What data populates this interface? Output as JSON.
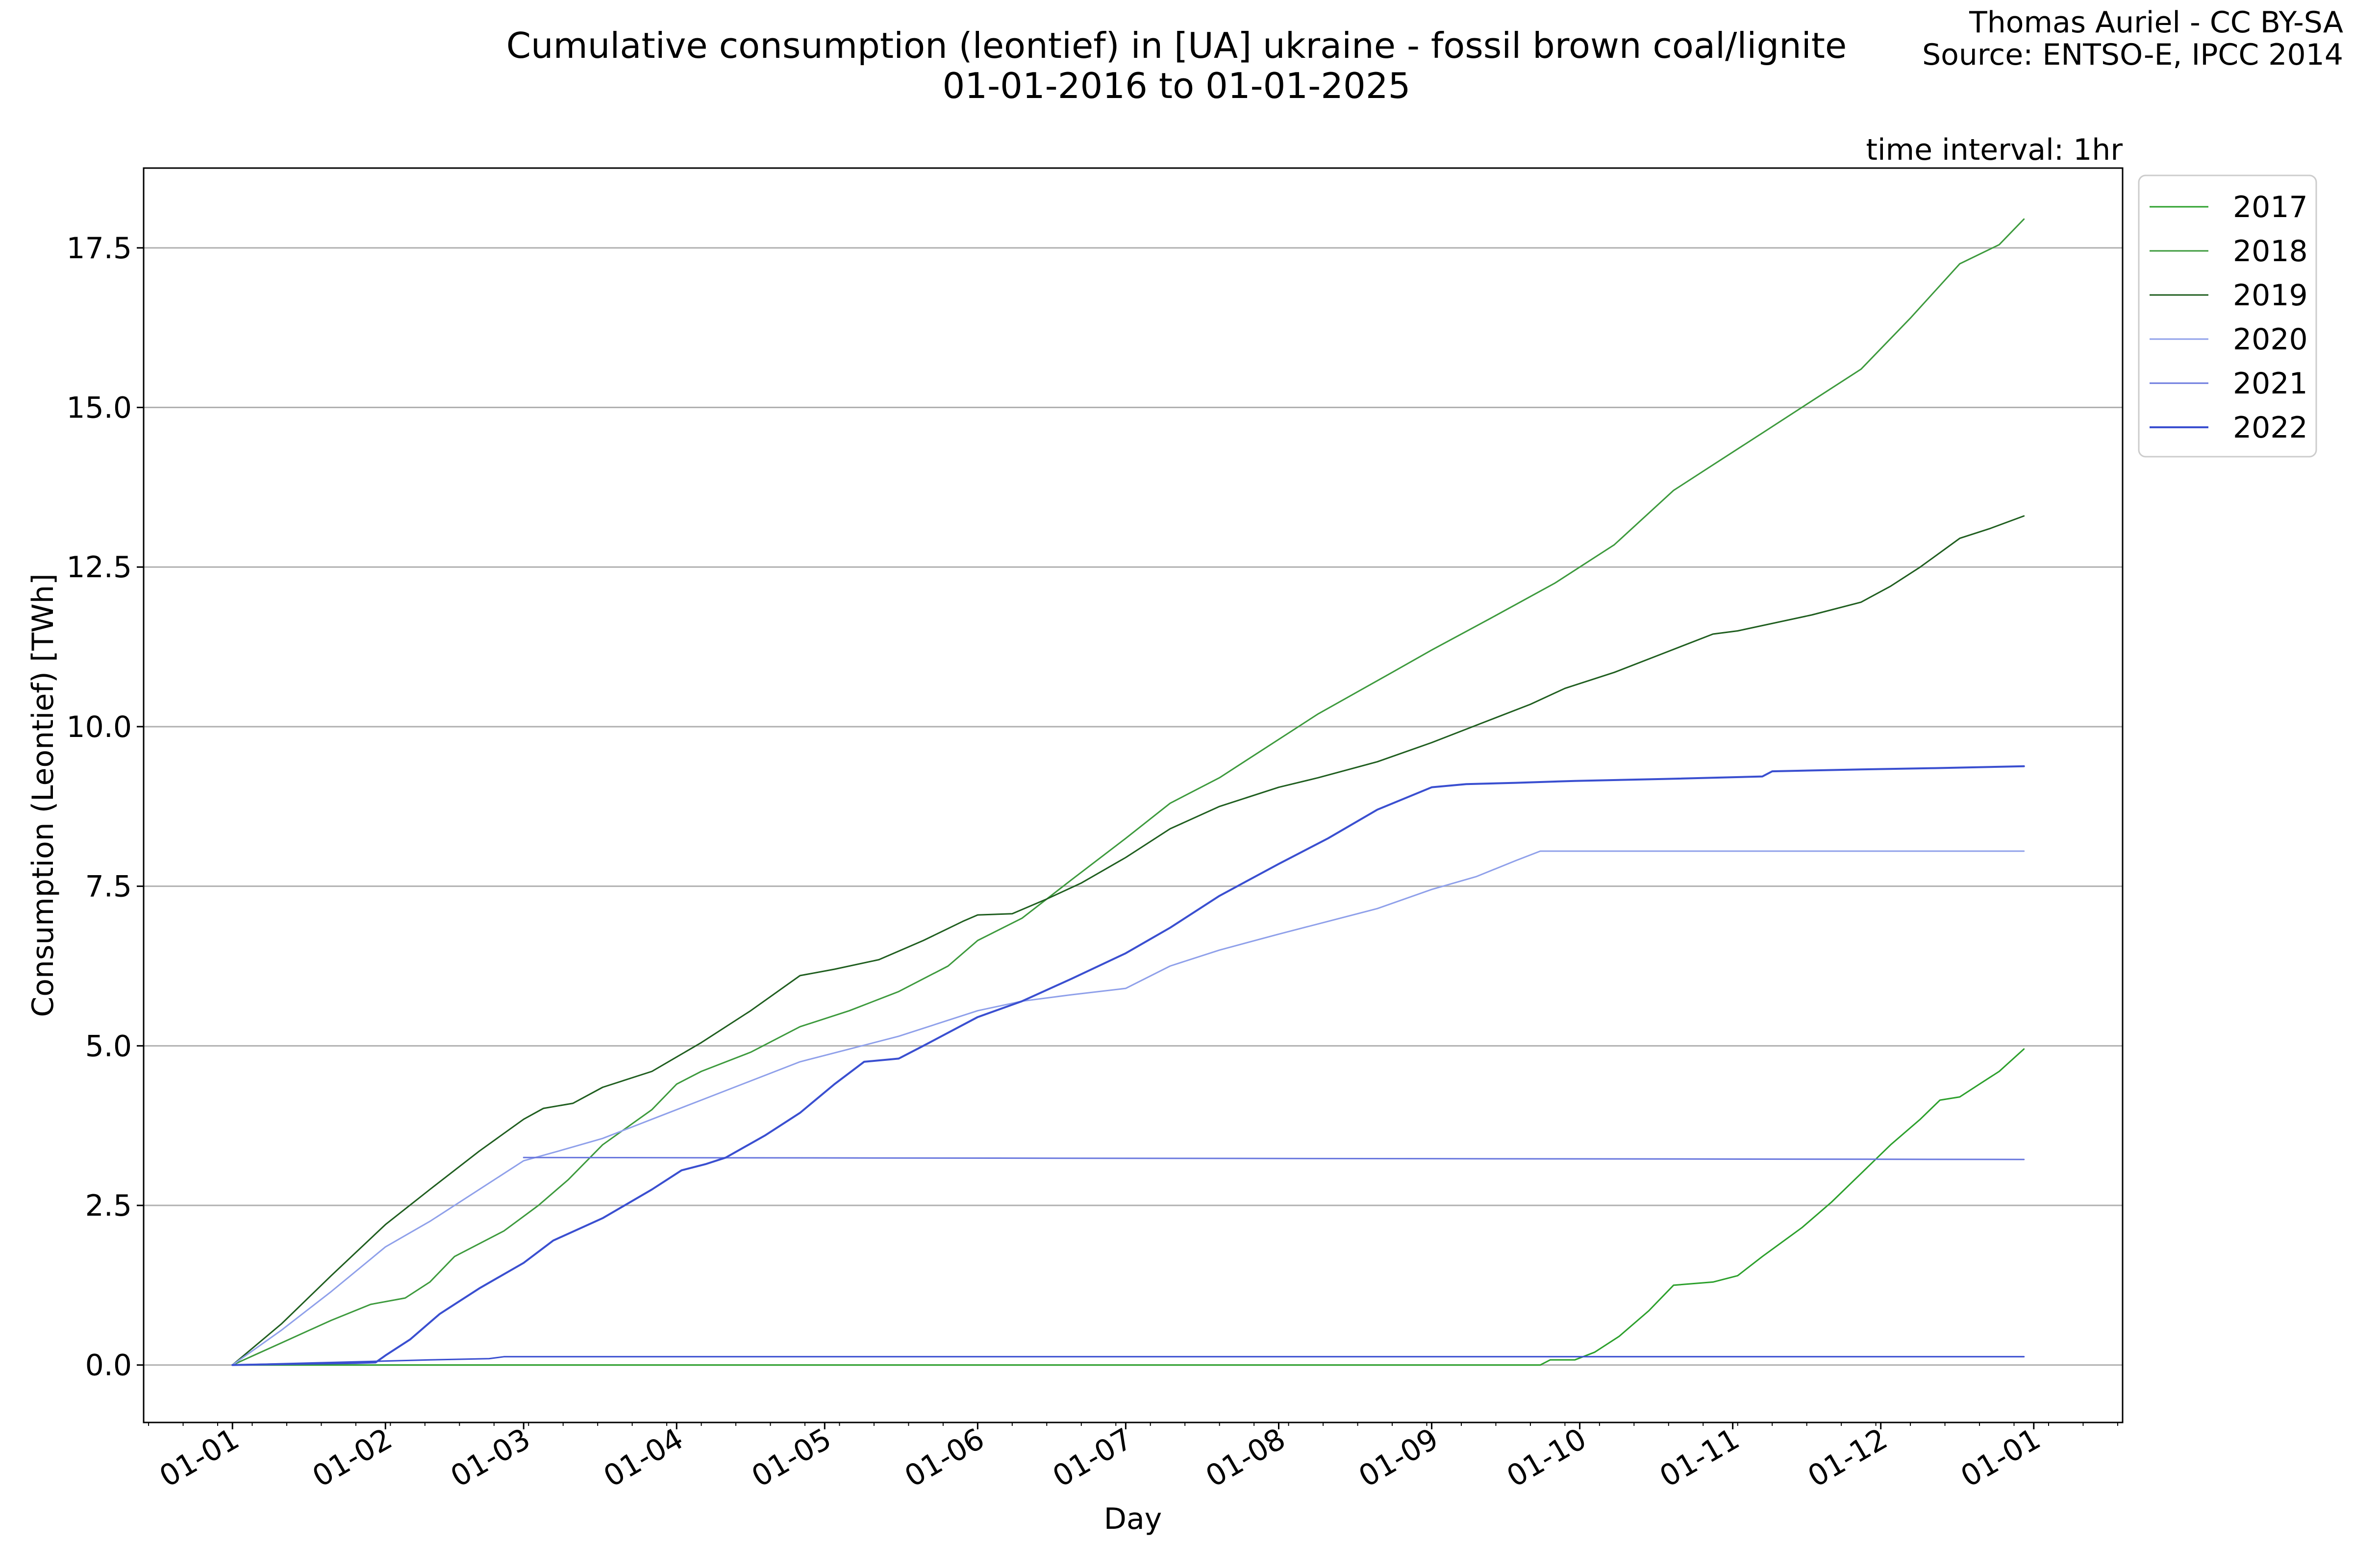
{
  "title_line1": "Cumulative consumption (leontief) in [UA] ukraine - fossil brown coal/lignite",
  "title_line2": "01-01-2016 to 01-01-2025",
  "credit_line1": "Thomas Auriel - CC BY-SA",
  "credit_line2": "Source: ENTSO-E, IPCC 2014",
  "interval_text": "time interval: 1hr",
  "chart_data": {
    "type": "line",
    "xlabel": "Day",
    "ylabel": "Consumption (Leontief) [TWh]",
    "x_tick_labels": [
      "01-01",
      "01-02",
      "01-03",
      "01-04",
      "01-05",
      "01-06",
      "01-07",
      "01-08",
      "01-09",
      "01-10",
      "01-11",
      "01-12",
      "01-01"
    ],
    "x_tick_days": [
      0,
      31,
      59,
      90,
      120,
      151,
      181,
      212,
      243,
      273,
      304,
      334,
      365
    ],
    "y_ticks": [
      0.0,
      2.5,
      5.0,
      7.5,
      10.0,
      12.5,
      15.0,
      17.5
    ],
    "y_tick_labels": [
      "0.0",
      "2.5",
      "5.0",
      "7.5",
      "10.0",
      "12.5",
      "15.0",
      "17.5"
    ],
    "xlim": [
      -18,
      383
    ],
    "ylim": [
      -0.9,
      18.75
    ],
    "grid": "horizontal",
    "legend_position": "upper-right-outside",
    "series": [
      {
        "name": "2017",
        "color": "#2ca02c",
        "width": 3,
        "points": [
          [
            0,
            0
          ],
          [
            15,
            0
          ],
          [
            59,
            0
          ],
          [
            90,
            0
          ],
          [
            120,
            0
          ],
          [
            151,
            0
          ],
          [
            181,
            0
          ],
          [
            212,
            0
          ],
          [
            243,
            0
          ],
          [
            265,
            0
          ],
          [
            267,
            0.08
          ],
          [
            272,
            0.08
          ],
          [
            276,
            0.2
          ],
          [
            281,
            0.45
          ],
          [
            287,
            0.85
          ],
          [
            292,
            1.25
          ],
          [
            300,
            1.3
          ],
          [
            305,
            1.4
          ],
          [
            310,
            1.7
          ],
          [
            318,
            2.15
          ],
          [
            324,
            2.55
          ],
          [
            330,
            3.0
          ],
          [
            336,
            3.45
          ],
          [
            342,
            3.85
          ],
          [
            346,
            4.15
          ],
          [
            350,
            4.2
          ],
          [
            354,
            4.4
          ],
          [
            358,
            4.6
          ],
          [
            363,
            4.95
          ]
        ]
      },
      {
        "name": "2018",
        "color": "#3d9a3d",
        "width": 3,
        "points": [
          [
            0,
            0
          ],
          [
            10,
            0.35
          ],
          [
            20,
            0.7
          ],
          [
            28,
            0.95
          ],
          [
            35,
            1.05
          ],
          [
            40,
            1.3
          ],
          [
            45,
            1.7
          ],
          [
            55,
            2.1
          ],
          [
            62,
            2.5
          ],
          [
            68,
            2.9
          ],
          [
            75,
            3.45
          ],
          [
            85,
            4.0
          ],
          [
            90,
            4.4
          ],
          [
            95,
            4.6
          ],
          [
            105,
            4.9
          ],
          [
            115,
            5.3
          ],
          [
            125,
            5.55
          ],
          [
            135,
            5.85
          ],
          [
            145,
            6.25
          ],
          [
            151,
            6.65
          ],
          [
            160,
            7.0
          ],
          [
            170,
            7.6
          ],
          [
            181,
            8.25
          ],
          [
            190,
            8.8
          ],
          [
            200,
            9.2
          ],
          [
            212,
            9.8
          ],
          [
            220,
            10.2
          ],
          [
            235,
            10.85
          ],
          [
            243,
            11.2
          ],
          [
            255,
            11.7
          ],
          [
            268,
            12.25
          ],
          [
            280,
            12.85
          ],
          [
            292,
            13.7
          ],
          [
            300,
            14.1
          ],
          [
            310,
            14.6
          ],
          [
            318,
            15.0
          ],
          [
            330,
            15.6
          ],
          [
            340,
            16.4
          ],
          [
            350,
            17.25
          ],
          [
            358,
            17.55
          ],
          [
            363,
            17.95
          ]
        ]
      },
      {
        "name": "2019",
        "color": "#1f5e1f",
        "width": 3,
        "points": [
          [
            0,
            0
          ],
          [
            10,
            0.65
          ],
          [
            20,
            1.4
          ],
          [
            31,
            2.2
          ],
          [
            40,
            2.75
          ],
          [
            50,
            3.35
          ],
          [
            59,
            3.85
          ],
          [
            63,
            4.02
          ],
          [
            69,
            4.1
          ],
          [
            75,
            4.35
          ],
          [
            85,
            4.6
          ],
          [
            95,
            5.05
          ],
          [
            105,
            5.55
          ],
          [
            115,
            6.1
          ],
          [
            122,
            6.2
          ],
          [
            131,
            6.35
          ],
          [
            140,
            6.65
          ],
          [
            148,
            6.95
          ],
          [
            151,
            7.05
          ],
          [
            158,
            7.07
          ],
          [
            165,
            7.3
          ],
          [
            172,
            7.55
          ],
          [
            181,
            7.95
          ],
          [
            190,
            8.4
          ],
          [
            200,
            8.75
          ],
          [
            212,
            9.05
          ],
          [
            220,
            9.2
          ],
          [
            232,
            9.45
          ],
          [
            243,
            9.75
          ],
          [
            253,
            10.05
          ],
          [
            263,
            10.35
          ],
          [
            270,
            10.6
          ],
          [
            280,
            10.85
          ],
          [
            290,
            11.15
          ],
          [
            300,
            11.45
          ],
          [
            305,
            11.5
          ],
          [
            320,
            11.75
          ],
          [
            330,
            11.95
          ],
          [
            336,
            12.2
          ],
          [
            342,
            12.5
          ],
          [
            350,
            12.95
          ],
          [
            356,
            13.1
          ],
          [
            363,
            13.3
          ]
        ]
      },
      {
        "name": "2020",
        "color": "#8fa0ea",
        "width": 3,
        "points": [
          [
            0,
            0
          ],
          [
            10,
            0.55
          ],
          [
            20,
            1.15
          ],
          [
            31,
            1.85
          ],
          [
            40,
            2.25
          ],
          [
            50,
            2.75
          ],
          [
            59,
            3.2
          ],
          [
            66,
            3.35
          ],
          [
            75,
            3.55
          ],
          [
            85,
            3.85
          ],
          [
            95,
            4.15
          ],
          [
            105,
            4.45
          ],
          [
            115,
            4.75
          ],
          [
            125,
            4.95
          ],
          [
            135,
            5.15
          ],
          [
            145,
            5.4
          ],
          [
            151,
            5.55
          ],
          [
            160,
            5.7
          ],
          [
            170,
            5.8
          ],
          [
            181,
            5.9
          ],
          [
            190,
            6.25
          ],
          [
            200,
            6.5
          ],
          [
            212,
            6.75
          ],
          [
            222,
            6.95
          ],
          [
            232,
            7.15
          ],
          [
            243,
            7.45
          ],
          [
            252,
            7.65
          ],
          [
            260,
            7.9
          ],
          [
            265,
            8.05
          ],
          [
            300,
            8.05
          ],
          [
            363,
            8.05
          ]
        ]
      },
      {
        "name": "2021",
        "color": "#6a78de",
        "width": 3,
        "points": [
          [
            59,
            3.25
          ],
          [
            363,
            3.22
          ]
        ]
      },
      {
        "name": "2022",
        "color": "#3a4fd0",
        "width": 4,
        "points": [
          [
            0,
            0
          ],
          [
            15,
            0.02
          ],
          [
            25,
            0.03
          ],
          [
            29,
            0.04
          ],
          [
            31,
            0.15
          ],
          [
            36,
            0.4
          ],
          [
            42,
            0.8
          ],
          [
            50,
            1.2
          ],
          [
            59,
            1.6
          ],
          [
            65,
            1.95
          ],
          [
            75,
            2.3
          ],
          [
            85,
            2.75
          ],
          [
            91,
            3.05
          ],
          [
            96,
            3.15
          ],
          [
            100,
            3.25
          ],
          [
            108,
            3.6
          ],
          [
            115,
            3.95
          ],
          [
            122,
            4.4
          ],
          [
            128,
            4.75
          ],
          [
            135,
            4.8
          ],
          [
            140,
            5.0
          ],
          [
            151,
            5.45
          ],
          [
            160,
            5.7
          ],
          [
            170,
            6.05
          ],
          [
            181,
            6.45
          ],
          [
            190,
            6.85
          ],
          [
            200,
            7.35
          ],
          [
            212,
            7.85
          ],
          [
            222,
            8.25
          ],
          [
            232,
            8.7
          ],
          [
            243,
            9.05
          ],
          [
            250,
            9.1
          ],
          [
            260,
            9.12
          ],
          [
            272,
            9.15
          ],
          [
            290,
            9.18
          ],
          [
            310,
            9.22
          ],
          [
            312,
            9.3
          ],
          [
            330,
            9.33
          ],
          [
            345,
            9.35
          ],
          [
            363,
            9.38
          ]
        ]
      },
      {
        "name": "",
        "color": "#3a4fd0",
        "width": 3,
        "points": [
          [
            0,
            0
          ],
          [
            20,
            0.04
          ],
          [
            40,
            0.08
          ],
          [
            52,
            0.1
          ],
          [
            55,
            0.13
          ],
          [
            363,
            0.13
          ]
        ]
      }
    ]
  }
}
